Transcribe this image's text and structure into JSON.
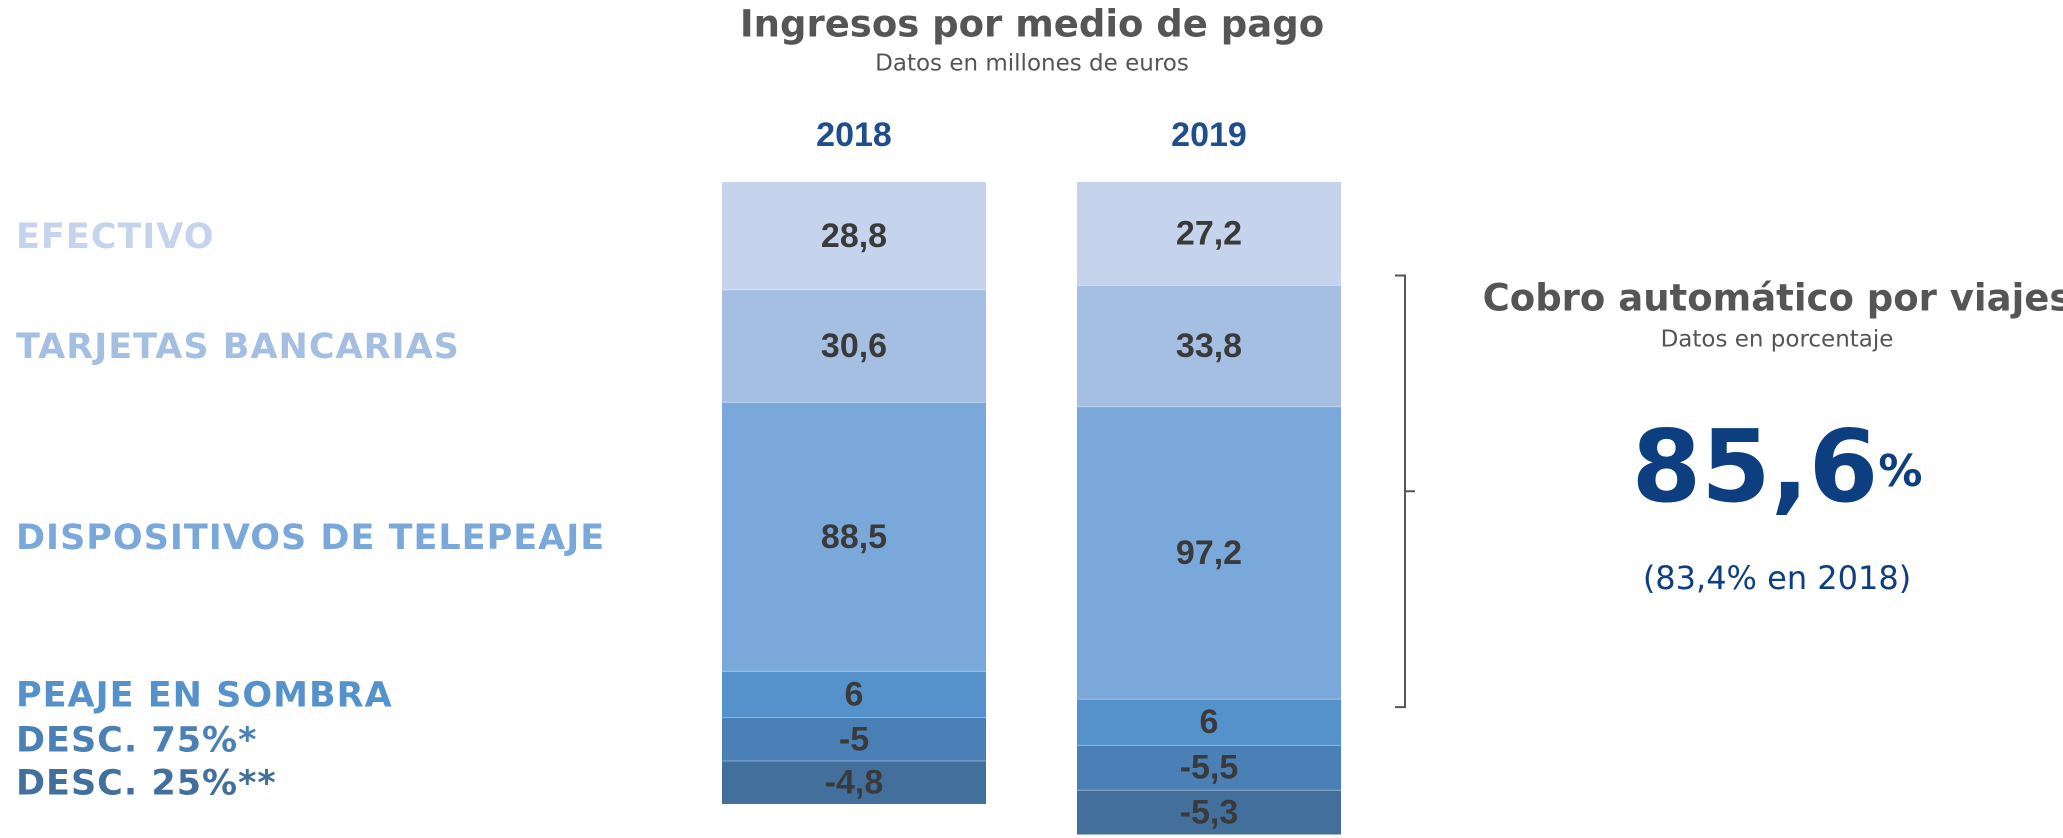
{
  "chart_data": {
    "type": "stacked_bar",
    "title": "Ingresos por medio de pago",
    "subtitle": "Datos en millones de euros",
    "categories": [
      "2018",
      "2019"
    ],
    "series": [
      {
        "name": "EFECTIVO",
        "color": "#c5d4ec",
        "values": [
          28.8,
          27.2
        ],
        "value_labels": [
          "28,8",
          "27,2"
        ]
      },
      {
        "name": "TARJETAS BANCARIAS",
        "color": "#a5bfe3",
        "values": [
          30.6,
          33.8
        ],
        "value_labels": [
          "30,6",
          "33,8"
        ]
      },
      {
        "name": "DISPOSITIVOS DE TELEPEAJE",
        "color": "#7ba8da",
        "values": [
          88.5,
          97.2
        ],
        "value_labels": [
          "88,5",
          "97,2"
        ]
      },
      {
        "name": "PEAJE EN SOMBRA",
        "color": "#5592cb",
        "values": [
          6,
          6
        ]
      },
      {
        "name": "DESC. 75%*",
        "color": "#4a80b5",
        "values": [
          -5,
          -5.5
        ],
        "value_labels": [
          "-5",
          "-5,5"
        ]
      },
      {
        "name": "DESC. 25%**",
        "color": "#436f9c",
        "values": [
          -4.8,
          -5.3
        ],
        "value_labels": [
          "-4,8",
          "-5,3"
        ]
      }
    ],
    "side_panel": {
      "title": "Cobro automático por viajes",
      "subtitle": "Datos en porcentaje",
      "value_label": "85,6",
      "unit": "%",
      "note": "(83,4% en 2018)"
    }
  }
}
